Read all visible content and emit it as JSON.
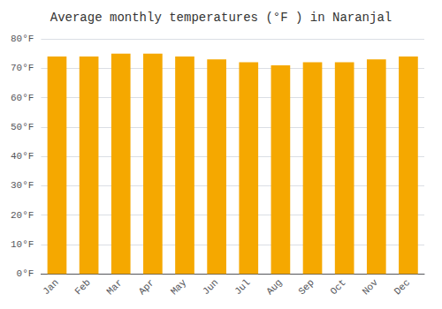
{
  "chart_data": {
    "type": "bar",
    "title": "Average monthly temperatures (°F ) in Naranjal",
    "categories": [
      "Jan",
      "Feb",
      "Mar",
      "Apr",
      "May",
      "Jun",
      "Jul",
      "Aug",
      "Sep",
      "Oct",
      "Nov",
      "Dec"
    ],
    "values": [
      74,
      74,
      75,
      75,
      74,
      73,
      72,
      71,
      72,
      72,
      73,
      74
    ],
    "color": "#F5A800",
    "ylim": [
      0,
      80
    ],
    "yticks": [
      {
        "value": 0,
        "label": "0°F"
      },
      {
        "value": 10,
        "label": "10°F"
      },
      {
        "value": 20,
        "label": "20°F"
      },
      {
        "value": 30,
        "label": "30°F"
      },
      {
        "value": 40,
        "label": "40°F"
      },
      {
        "value": 50,
        "label": "50°F"
      },
      {
        "value": 60,
        "label": "60°F"
      },
      {
        "value": 70,
        "label": "70°F"
      },
      {
        "value": 80,
        "label": "80°F"
      }
    ],
    "grid": true
  }
}
